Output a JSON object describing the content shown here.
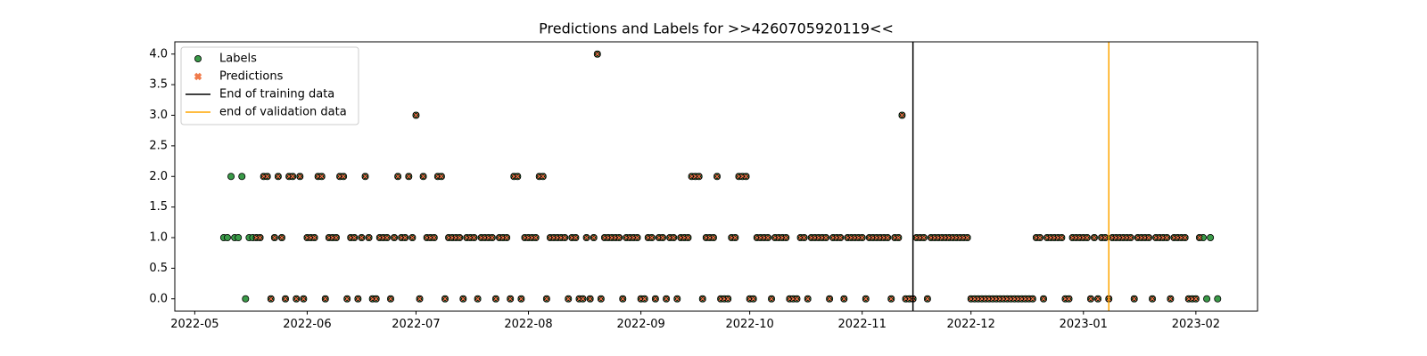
{
  "chart_data": {
    "type": "scatter",
    "title": "Predictions and Labels for >>4260705920119<<",
    "x": [
      19121,
      19122,
      19123,
      19124,
      19125,
      19126,
      19127,
      19128,
      19129,
      19130,
      19131,
      19132,
      19133,
      19134,
      19135,
      19136,
      19137,
      19138,
      19139,
      19140,
      19141,
      19142,
      19143,
      19144,
      19145,
      19146,
      19147,
      19148,
      19149,
      19150,
      19151,
      19152,
      19153,
      19154,
      19155,
      19156,
      19157,
      19158,
      19159,
      19160,
      19161,
      19162,
      19163,
      19164,
      19165,
      19166,
      19167,
      19168,
      19169,
      19170,
      19171,
      19172,
      19173,
      19174,
      19175,
      19176,
      19177,
      19178,
      19179,
      19180,
      19181,
      19182,
      19183,
      19184,
      19185,
      19186,
      19187,
      19188,
      19189,
      19190,
      19191,
      19192,
      19193,
      19194,
      19195,
      19196,
      19197,
      19198,
      19199,
      19200,
      19201,
      19202,
      19203,
      19204,
      19205,
      19206,
      19207,
      19208,
      19209,
      19210,
      19211,
      19212,
      19213,
      19214,
      19215,
      19216,
      19217,
      19218,
      19219,
      19220,
      19221,
      19222,
      19223,
      19224,
      19225,
      19226,
      19227,
      19228,
      19229,
      19230,
      19231,
      19232,
      19233,
      19234,
      19235,
      19236,
      19237,
      19238,
      19239,
      19240,
      19241,
      19242,
      19243,
      19244,
      19245,
      19246,
      19247,
      19248,
      19249,
      19250,
      19251,
      19252,
      19253,
      19254,
      19255,
      19256,
      19257,
      19258,
      19259,
      19260,
      19261,
      19262,
      19263,
      19264,
      19265,
      19266,
      19267,
      19268,
      19269,
      19270,
      19271,
      19272,
      19273,
      19274,
      19275,
      19276,
      19277,
      19278,
      19279,
      19280,
      19281,
      19282,
      19283,
      19284,
      19285,
      19286,
      19287,
      19288,
      19289,
      19290,
      19291,
      19292,
      19293,
      19294,
      19295,
      19296,
      19297,
      19298,
      19299,
      19300,
      19301,
      19302,
      19303,
      19304,
      19305,
      19306,
      19307,
      19308,
      19309,
      19310,
      19311,
      19312,
      19313,
      19314,
      19315,
      19316,
      19317,
      19318,
      19319,
      19320,
      19321,
      19322,
      19323,
      19324,
      19325,
      19326,
      19327,
      19328,
      19329,
      19330,
      19331,
      19332,
      19333,
      19334,
      19335,
      19336,
      19337,
      19338,
      19339,
      19340,
      19341,
      19342,
      19343,
      19344,
      19345,
      19346,
      19347,
      19348,
      19349,
      19350,
      19351,
      19352,
      19353,
      19354,
      19355,
      19356,
      19357,
      19358,
      19359,
      19360,
      19361,
      19362,
      19363,
      19364,
      19365,
      19366,
      19367,
      19368,
      19369,
      19370,
      19371,
      19372,
      19373,
      19374,
      19375,
      19376,
      19377,
      19378,
      19379,
      19380,
      19381,
      19382,
      19383,
      19384,
      19385,
      19386,
      19387,
      19388,
      19389,
      19390,
      19391,
      19392,
      19393,
      19394,
      19395
    ],
    "series": [
      {
        "name": "Labels",
        "marker": "circle",
        "color": "#3a9a48",
        "values": [
          1,
          1,
          2,
          1,
          1,
          2,
          0,
          1,
          1,
          1,
          1,
          2,
          2,
          0,
          1,
          2,
          1,
          0,
          2,
          2,
          0,
          2,
          0,
          1,
          1,
          1,
          2,
          2,
          0,
          1,
          1,
          1,
          2,
          2,
          0,
          1,
          1,
          0,
          1,
          2,
          1,
          0,
          0,
          1,
          1,
          1,
          0,
          1,
          2,
          1,
          1,
          2,
          1,
          3,
          0,
          2,
          1,
          1,
          1,
          2,
          2,
          0,
          1,
          1,
          1,
          1,
          0,
          1,
          1,
          1,
          0,
          1,
          1,
          1,
          1,
          0,
          1,
          1,
          1,
          0,
          2,
          2,
          0,
          1,
          1,
          1,
          1,
          2,
          2,
          0,
          1,
          1,
          1,
          1,
          1,
          0,
          1,
          1,
          0,
          0,
          1,
          0,
          1,
          4,
          0,
          1,
          1,
          1,
          1,
          1,
          0,
          1,
          1,
          1,
          1,
          0,
          0,
          1,
          1,
          0,
          1,
          1,
          0,
          1,
          1,
          0,
          1,
          1,
          1,
          2,
          2,
          2,
          0,
          1,
          1,
          1,
          2,
          0,
          0,
          0,
          1,
          1,
          2,
          2,
          2,
          0,
          0,
          1,
          1,
          1,
          1,
          0,
          1,
          1,
          1,
          1,
          0,
          0,
          0,
          1,
          1,
          0,
          1,
          1,
          1,
          1,
          1,
          0,
          1,
          1,
          1,
          0,
          1,
          1,
          1,
          1,
          1,
          0,
          1,
          1,
          1,
          1,
          1,
          1,
          0,
          1,
          1,
          3,
          0,
          0,
          0,
          1,
          1,
          1,
          0,
          1,
          1,
          1,
          1,
          1,
          1,
          1,
          1,
          1,
          1,
          1,
          0,
          0,
          0,
          0,
          0,
          0,
          0,
          0,
          0,
          0,
          0,
          0,
          0,
          0,
          0,
          0,
          0,
          0,
          1,
          1,
          0,
          1,
          1,
          1,
          1,
          1,
          0,
          0,
          1,
          1,
          1,
          1,
          1,
          0,
          1,
          0,
          1,
          1,
          0,
          1,
          1,
          1,
          1,
          1,
          1,
          0,
          1,
          1,
          1,
          1,
          0,
          1,
          1,
          1,
          1,
          0,
          1,
          1,
          1,
          1,
          0,
          0,
          0,
          1,
          1,
          0,
          1,
          null,
          0
        ]
      },
      {
        "name": "Predictions",
        "marker": "x",
        "color": "#f07a4a",
        "values": [
          null,
          null,
          null,
          null,
          null,
          null,
          null,
          null,
          null,
          1,
          1,
          2,
          2,
          0,
          1,
          2,
          1,
          0,
          2,
          2,
          0,
          2,
          0,
          1,
          1,
          1,
          2,
          2,
          0,
          1,
          1,
          1,
          2,
          2,
          0,
          1,
          1,
          0,
          1,
          2,
          1,
          0,
          0,
          1,
          1,
          1,
          0,
          1,
          2,
          1,
          1,
          2,
          1,
          3,
          0,
          2,
          1,
          1,
          1,
          2,
          2,
          0,
          1,
          1,
          1,
          1,
          0,
          1,
          1,
          1,
          0,
          1,
          1,
          1,
          1,
          0,
          1,
          1,
          1,
          0,
          2,
          2,
          0,
          1,
          1,
          1,
          1,
          2,
          2,
          0,
          1,
          1,
          1,
          1,
          1,
          0,
          1,
          1,
          0,
          0,
          1,
          0,
          1,
          4,
          0,
          1,
          1,
          1,
          1,
          1,
          0,
          1,
          1,
          1,
          1,
          0,
          0,
          1,
          1,
          0,
          1,
          1,
          0,
          1,
          1,
          0,
          1,
          1,
          1,
          2,
          2,
          2,
          0,
          1,
          1,
          1,
          2,
          0,
          0,
          0,
          1,
          1,
          2,
          2,
          2,
          0,
          0,
          1,
          1,
          1,
          1,
          0,
          1,
          1,
          1,
          1,
          0,
          0,
          0,
          1,
          1,
          0,
          1,
          1,
          1,
          1,
          1,
          0,
          1,
          1,
          1,
          0,
          1,
          1,
          1,
          1,
          1,
          0,
          1,
          1,
          1,
          1,
          1,
          1,
          0,
          1,
          1,
          3,
          0,
          0,
          0,
          1,
          1,
          1,
          0,
          1,
          1,
          1,
          1,
          1,
          1,
          1,
          1,
          1,
          1,
          1,
          0,
          0,
          0,
          0,
          0,
          0,
          0,
          0,
          0,
          0,
          0,
          0,
          0,
          0,
          0,
          0,
          0,
          0,
          1,
          1,
          0,
          1,
          1,
          1,
          1,
          1,
          0,
          0,
          1,
          1,
          1,
          1,
          1,
          0,
          1,
          0,
          1,
          1,
          0,
          1,
          1,
          1,
          1,
          1,
          1,
          0,
          1,
          1,
          1,
          1,
          0,
          1,
          1,
          1,
          1,
          0,
          1,
          1,
          1,
          1,
          0,
          0,
          0,
          1,
          null,
          null,
          null,
          null,
          null
        ]
      }
    ],
    "vlines": [
      {
        "name": "End of training data",
        "x": 19311,
        "color": "#000000"
      },
      {
        "name": "end of validation data",
        "x": 19365,
        "color": "#ffa500"
      }
    ],
    "xlim": [
      19107.5,
      19406
    ],
    "xticks": [
      {
        "value": 19113,
        "label": "2022-05"
      },
      {
        "value": 19144,
        "label": "2022-06"
      },
      {
        "value": 19174,
        "label": "2022-07"
      },
      {
        "value": 19205,
        "label": "2022-08"
      },
      {
        "value": 19236,
        "label": "2022-09"
      },
      {
        "value": 19266,
        "label": "2022-10"
      },
      {
        "value": 19297,
        "label": "2022-11"
      },
      {
        "value": 19327,
        "label": "2022-12"
      },
      {
        "value": 19358,
        "label": "2023-01"
      },
      {
        "value": 19389,
        "label": "2023-02"
      }
    ],
    "ylim": [
      -0.2,
      4.2
    ],
    "yticks": [
      {
        "value": 0,
        "label": "0.0"
      },
      0.5,
      {
        "value": 1,
        "label": "1.0"
      },
      1.5,
      {
        "value": 2,
        "label": "2.0"
      },
      2.5,
      {
        "value": 3,
        "label": "3.0"
      },
      3.5,
      {
        "value": 4,
        "label": "4.0"
      }
    ],
    "legend": "upper left"
  }
}
